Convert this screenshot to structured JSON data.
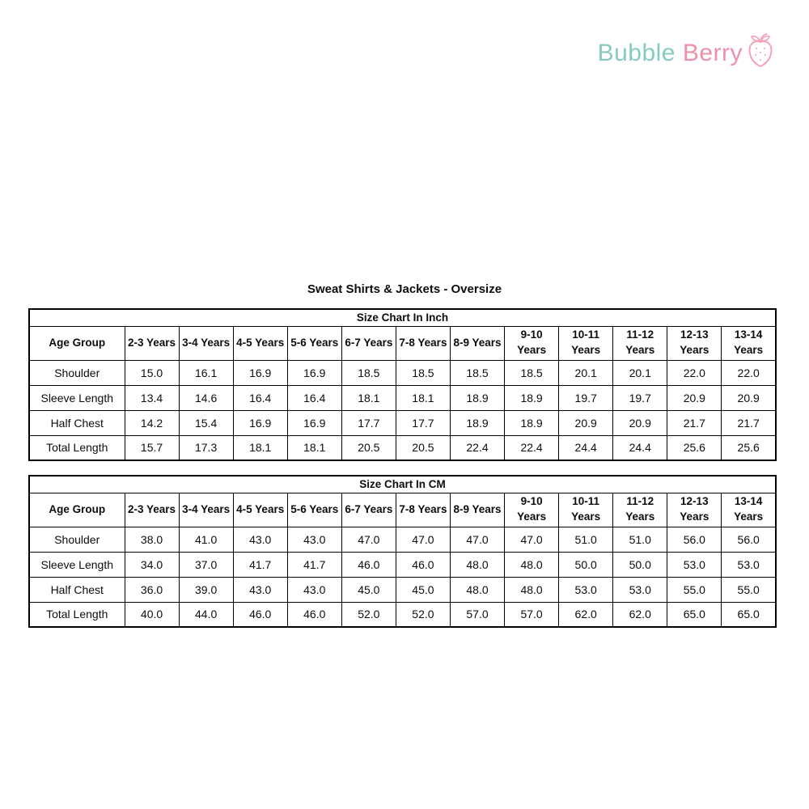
{
  "brand": {
    "name_primary": "Bubble ",
    "name_secondary": "Berry",
    "colors": {
      "primary": "#85CBC0",
      "secondary": "#F08FA9",
      "icon": "#F2A3B8"
    },
    "icon": "strawberry"
  },
  "page_title": "Sweat Shirts & Jackets - Oversize",
  "tables": [
    {
      "title": "Size Chart In Inch",
      "corner_label": "Age Group",
      "columns": [
        "2-3 Years",
        "3-4 Years",
        "4-5 Years",
        "5-6 Years",
        "6-7 Years",
        "7-8 Years",
        "8-9 Years",
        "9-10\nYears",
        "10-11\nYears",
        "11-12\nYears",
        "12-13\nYears",
        "13-14\nYears"
      ],
      "rows": [
        {
          "label": "Shoulder",
          "values": [
            "15.0",
            "16.1",
            "16.9",
            "16.9",
            "18.5",
            "18.5",
            "18.5",
            "18.5",
            "20.1",
            "20.1",
            "22.0",
            "22.0"
          ]
        },
        {
          "label": "Sleeve Length",
          "values": [
            "13.4",
            "14.6",
            "16.4",
            "16.4",
            "18.1",
            "18.1",
            "18.9",
            "18.9",
            "19.7",
            "19.7",
            "20.9",
            "20.9"
          ]
        },
        {
          "label": "Half Chest",
          "values": [
            "14.2",
            "15.4",
            "16.9",
            "16.9",
            "17.7",
            "17.7",
            "18.9",
            "18.9",
            "20.9",
            "20.9",
            "21.7",
            "21.7"
          ]
        },
        {
          "label": "Total Length",
          "values": [
            "15.7",
            "17.3",
            "18.1",
            "18.1",
            "20.5",
            "20.5",
            "22.4",
            "22.4",
            "24.4",
            "24.4",
            "25.6",
            "25.6"
          ]
        }
      ]
    },
    {
      "title": "Size Chart In CM",
      "corner_label": "Age Group",
      "columns": [
        "2-3 Years",
        "3-4 Years",
        "4-5 Years",
        "5-6 Years",
        "6-7 Years",
        "7-8 Years",
        "8-9 Years",
        "9-10\nYears",
        "10-11\nYears",
        "11-12\nYears",
        "12-13\nYears",
        "13-14\nYears"
      ],
      "rows": [
        {
          "label": "Shoulder",
          "values": [
            "38.0",
            "41.0",
            "43.0",
            "43.0",
            "47.0",
            "47.0",
            "47.0",
            "47.0",
            "51.0",
            "51.0",
            "56.0",
            "56.0"
          ]
        },
        {
          "label": "Sleeve Length",
          "values": [
            "34.0",
            "37.0",
            "41.7",
            "41.7",
            "46.0",
            "46.0",
            "48.0",
            "48.0",
            "50.0",
            "50.0",
            "53.0",
            "53.0"
          ]
        },
        {
          "label": "Half Chest",
          "values": [
            "36.0",
            "39.0",
            "43.0",
            "43.0",
            "45.0",
            "45.0",
            "48.0",
            "48.0",
            "53.0",
            "53.0",
            "55.0",
            "55.0"
          ]
        },
        {
          "label": "Total Length",
          "values": [
            "40.0",
            "44.0",
            "46.0",
            "46.0",
            "52.0",
            "52.0",
            "57.0",
            "57.0",
            "62.0",
            "62.0",
            "65.0",
            "65.0"
          ]
        }
      ]
    }
  ]
}
